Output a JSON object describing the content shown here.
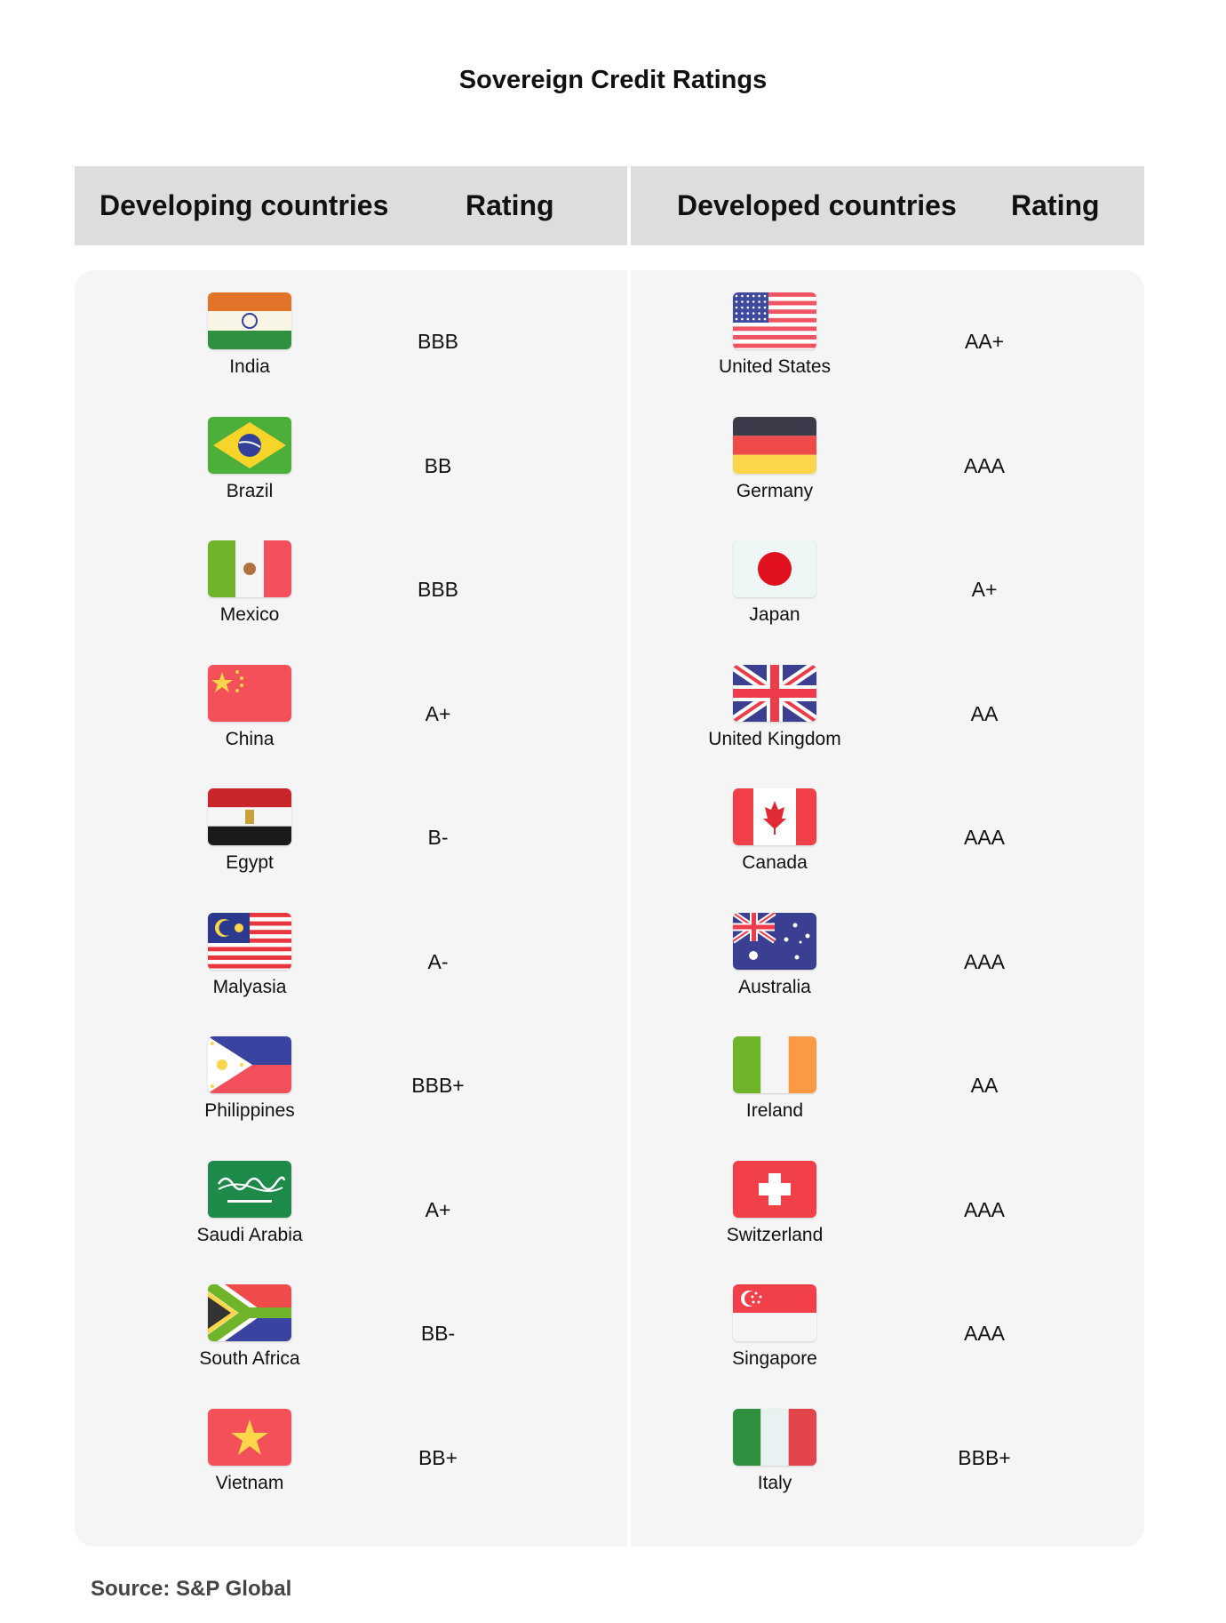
{
  "title": "Sovereign Credit Ratings",
  "headers": {
    "developing": "Developing countries",
    "developing_rating": "Rating",
    "developed": "Developed countries",
    "developed_rating": "Rating"
  },
  "rows": [
    {
      "developing": {
        "name": "India",
        "rating": "BBB",
        "flag": "in"
      },
      "developed": {
        "name": "United States",
        "rating": "AA+",
        "flag": "us"
      }
    },
    {
      "developing": {
        "name": "Brazil",
        "rating": "BB",
        "flag": "br"
      },
      "developed": {
        "name": "Germany",
        "rating": "AAA",
        "flag": "de"
      }
    },
    {
      "developing": {
        "name": "Mexico",
        "rating": "BBB",
        "flag": "mx"
      },
      "developed": {
        "name": "Japan",
        "rating": "A+",
        "flag": "jp"
      }
    },
    {
      "developing": {
        "name": "China",
        "rating": "A+",
        "flag": "cn"
      },
      "developed": {
        "name": "United Kingdom",
        "rating": "AA",
        "flag": "gb"
      }
    },
    {
      "developing": {
        "name": "Egypt",
        "rating": "B-",
        "flag": "eg"
      },
      "developed": {
        "name": "Canada",
        "rating": "AAA",
        "flag": "ca"
      }
    },
    {
      "developing": {
        "name": "Malyasia",
        "rating": "A-",
        "flag": "my"
      },
      "developed": {
        "name": "Australia",
        "rating": "AAA",
        "flag": "au"
      }
    },
    {
      "developing": {
        "name": "Philippines",
        "rating": "BBB+",
        "flag": "ph"
      },
      "developed": {
        "name": "Ireland",
        "rating": "AA",
        "flag": "ie"
      }
    },
    {
      "developing": {
        "name": "Saudi Arabia",
        "rating": "A+",
        "flag": "sa"
      },
      "developed": {
        "name": "Switzerland",
        "rating": "AAA",
        "flag": "ch"
      }
    },
    {
      "developing": {
        "name": "South Africa",
        "rating": "BB-",
        "flag": "za"
      },
      "developed": {
        "name": "Singapore",
        "rating": "AAA",
        "flag": "sg"
      }
    },
    {
      "developing": {
        "name": "Vietnam",
        "rating": "BB+",
        "flag": "vn"
      },
      "developed": {
        "name": "Italy",
        "rating": "BBB+",
        "flag": "it"
      }
    }
  ],
  "source": "Source: S&P Global"
}
